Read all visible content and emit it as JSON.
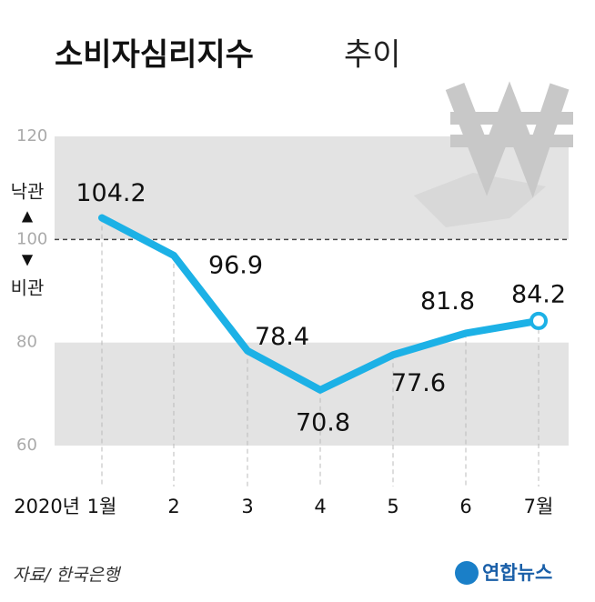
{
  "chart_data": {
    "type": "line",
    "title": "소비자심리지수",
    "title_suffix": "추이",
    "categories": [
      "1월",
      "2",
      "3",
      "4",
      "5",
      "6",
      "7월"
    ],
    "year_label": "2020년",
    "values": [
      104.2,
      96.9,
      78.4,
      70.8,
      77.6,
      81.8,
      84.2
    ],
    "color": "#1cb1e6",
    "ylim": [
      60,
      120
    ],
    "yticks": [
      60,
      80,
      100,
      120
    ],
    "reference_line": 100,
    "upper_label": "낙관",
    "upper_arrow": "▲",
    "lower_arrow": "▼",
    "lower_label": "비관",
    "source": "자료/ 한국은행",
    "logo": "연합뉴스"
  }
}
